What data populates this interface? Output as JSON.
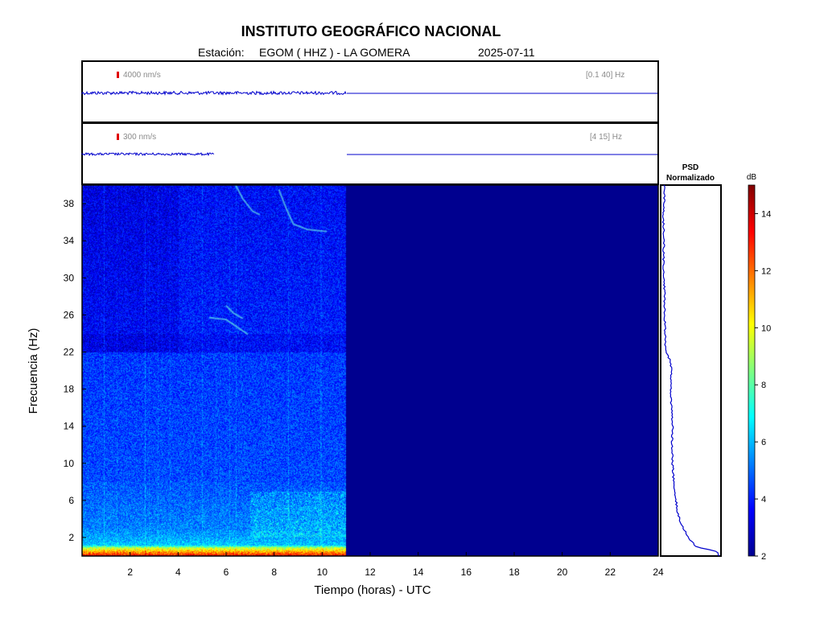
{
  "header": {
    "title": "INSTITUTO GEOGRÁFICO NACIONAL",
    "station_label": "Estación:",
    "station": "EGOM ( HHZ ) - LA GOMERA",
    "date": "2025-07-11"
  },
  "trace1": {
    "scale": "4000 nm/s",
    "band": "[0.1 40] Hz"
  },
  "trace2": {
    "scale": "300 nm/s",
    "band": "[4 15] Hz"
  },
  "psd": {
    "title_line1": "PSD",
    "title_line2": "Normalizado"
  },
  "colorbar": {
    "unit": "dB"
  },
  "colors": {
    "trace": "#0000cc",
    "scale_mark": "#e00000",
    "no_data": "#00008f"
  },
  "chart_data": {
    "type": "heatmap",
    "title": "INSTITUTO GEOGRÁFICO NACIONAL",
    "xlabel": "Tiempo (horas) - UTC",
    "ylabel": "Frecuencia  (Hz)",
    "xlim": [
      0,
      24
    ],
    "ylim": [
      0,
      40
    ],
    "x_ticks": [
      2,
      4,
      6,
      8,
      10,
      12,
      14,
      16,
      18,
      20,
      22,
      24
    ],
    "y_ticks": [
      2,
      6,
      10,
      14,
      18,
      22,
      26,
      30,
      34,
      38
    ],
    "data_end_hour": 11,
    "colorbar": {
      "label": "dB",
      "range": [
        2,
        15
      ],
      "ticks": [
        2,
        4,
        6,
        8,
        10,
        12,
        14
      ]
    },
    "psd_profile": {
      "freq": [
        0,
        0.5,
        1,
        2,
        3,
        4,
        5,
        6,
        7,
        8,
        10,
        12,
        14,
        16,
        18,
        20,
        21,
        22,
        24,
        26,
        28,
        30,
        32,
        34,
        36,
        38,
        40
      ],
      "value": [
        1.0,
        0.95,
        0.6,
        0.45,
        0.37,
        0.3,
        0.26,
        0.24,
        0.22,
        0.2,
        0.18,
        0.17,
        0.18,
        0.16,
        0.15,
        0.16,
        0.15,
        0.06,
        0.05,
        0.04,
        0.04,
        0.03,
        0.02,
        0.03,
        0.02,
        0.03,
        0.04
      ]
    }
  }
}
